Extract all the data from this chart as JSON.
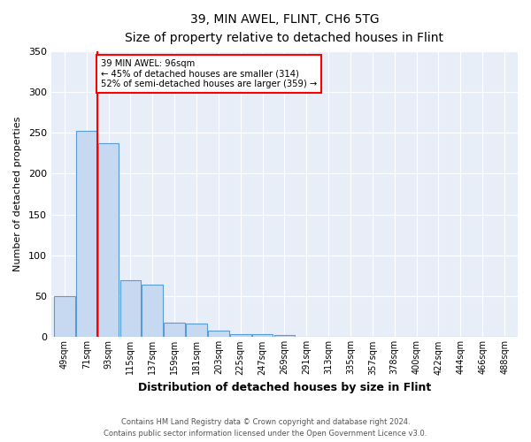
{
  "title": "39, MIN AWEL, FLINT, CH6 5TG",
  "subtitle": "Size of property relative to detached houses in Flint",
  "xlabel": "Distribution of detached houses by size in Flint",
  "ylabel": "Number of detached properties",
  "footnote1": "Contains HM Land Registry data © Crown copyright and database right 2024.",
  "footnote2": "Contains public sector information licensed under the Open Government Licence v3.0.",
  "bar_labels": [
    "49sqm",
    "71sqm",
    "93sqm",
    "115sqm",
    "137sqm",
    "159sqm",
    "181sqm",
    "203sqm",
    "225sqm",
    "247sqm",
    "269sqm",
    "291sqm",
    "313sqm",
    "335sqm",
    "357sqm",
    "378sqm",
    "400sqm",
    "422sqm",
    "444sqm",
    "466sqm",
    "488sqm"
  ],
  "bar_values": [
    50,
    252,
    237,
    70,
    64,
    18,
    17,
    8,
    4,
    4,
    3,
    0,
    0,
    0,
    0,
    0,
    0,
    0,
    0,
    0,
    0
  ],
  "bar_color": "#c6d9f1",
  "bar_edge_color": "#5b9bd5",
  "vline_x": 1.5,
  "vline_color": "red",
  "annotation_text": "39 MIN AWEL: 96sqm\n← 45% of detached houses are smaller (314)\n52% of semi-detached houses are larger (359) →",
  "annotation_box_color": "white",
  "annotation_box_edge": "red",
  "ylim": [
    0,
    350
  ],
  "yticks": [
    0,
    50,
    100,
    150,
    200,
    250,
    300,
    350
  ],
  "background_color": "#e8eef8",
  "plot_bg_color": "#e8eef8",
  "fig_bg_color": "#ffffff"
}
